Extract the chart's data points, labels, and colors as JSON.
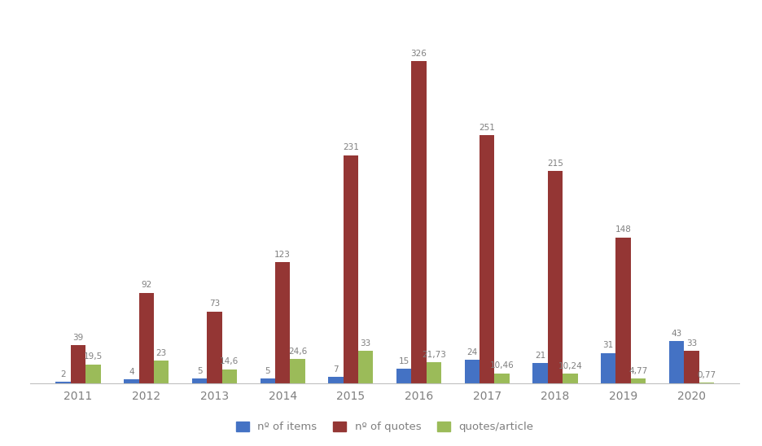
{
  "years": [
    "2011",
    "2012",
    "2013",
    "2014",
    "2015",
    "2016",
    "2017",
    "2018",
    "2019",
    "2020"
  ],
  "n_items": [
    2,
    4,
    5,
    5,
    7,
    15,
    24,
    21,
    31,
    43
  ],
  "n_quotes": [
    39,
    92,
    73,
    123,
    231,
    326,
    251,
    215,
    148,
    33
  ],
  "quotes_per_article": [
    19.5,
    23,
    14.6,
    24.6,
    33,
    21.73,
    10.46,
    10.24,
    4.77,
    0.77
  ],
  "labels_items": [
    "2",
    "4",
    "5",
    "5",
    "7",
    "15",
    "24",
    "21",
    "31",
    "43"
  ],
  "labels_quotes": [
    "39",
    "92",
    "73",
    "123",
    "231",
    "326",
    "251",
    "215",
    "148",
    "33"
  ],
  "labels_qpa": [
    "19,5",
    "23",
    "14,6",
    "24,6",
    "33",
    "21,73",
    "10,46",
    "10,24",
    "4,77",
    "0,77"
  ],
  "color_items": "#4472c4",
  "color_quotes": "#943634",
  "color_qpa": "#9bbb59",
  "legend_items": "nº of items",
  "legend_quotes": "nº of quotes",
  "legend_qpa": "quotes/article",
  "bar_width": 0.22,
  "ylim": [
    0,
    370
  ],
  "background_color": "#ffffff",
  "label_fontsize": 7.5,
  "legend_fontsize": 9.5,
  "tick_fontsize": 10,
  "label_color": "#7f7f7f"
}
